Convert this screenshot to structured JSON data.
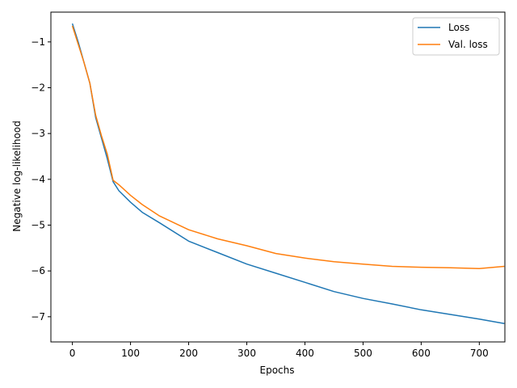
{
  "chart_data": {
    "type": "line",
    "title": "",
    "xlabel": "Epochs",
    "ylabel": "Negative log-likelihood",
    "xlim": [
      -37,
      744
    ],
    "ylim": [
      -7.55,
      -0.35
    ],
    "xticks": [
      0,
      100,
      200,
      300,
      400,
      500,
      600,
      700
    ],
    "xtick_labels": [
      "0",
      "100",
      "200",
      "300",
      "400",
      "500",
      "600",
      "700"
    ],
    "yticks": [
      -1,
      -2,
      -3,
      -4,
      -5,
      -6,
      -7
    ],
    "ytick_labels": [
      "−1",
      "−2",
      "−3",
      "−4",
      "−5",
      "−6",
      "−7"
    ],
    "grid": false,
    "legend_position": "top-right",
    "series": [
      {
        "name": "Loss",
        "color": "#1f77b4",
        "x": [
          0,
          10,
          20,
          30,
          40,
          50,
          60,
          70,
          80,
          100,
          120,
          150,
          200,
          250,
          300,
          350,
          400,
          450,
          500,
          550,
          600,
          650,
          700,
          743
        ],
        "y": [
          -0.6,
          -1.0,
          -1.45,
          -1.9,
          -2.65,
          -3.1,
          -3.55,
          -4.05,
          -4.25,
          -4.5,
          -4.72,
          -4.95,
          -5.35,
          -5.6,
          -5.85,
          -6.05,
          -6.25,
          -6.45,
          -6.6,
          -6.72,
          -6.85,
          -6.95,
          -7.05,
          -7.15
        ]
      },
      {
        "name": "Val. loss",
        "color": "#ff7f0e",
        "x": [
          0,
          10,
          20,
          30,
          40,
          50,
          60,
          70,
          80,
          100,
          120,
          150,
          200,
          250,
          300,
          350,
          400,
          450,
          500,
          550,
          600,
          650,
          700,
          743
        ],
        "y": [
          -0.65,
          -1.05,
          -1.45,
          -1.9,
          -2.6,
          -3.05,
          -3.45,
          -4.02,
          -4.12,
          -4.35,
          -4.55,
          -4.8,
          -5.1,
          -5.3,
          -5.45,
          -5.62,
          -5.72,
          -5.8,
          -5.85,
          -5.9,
          -5.92,
          -5.93,
          -5.95,
          -5.9
        ]
      }
    ]
  }
}
